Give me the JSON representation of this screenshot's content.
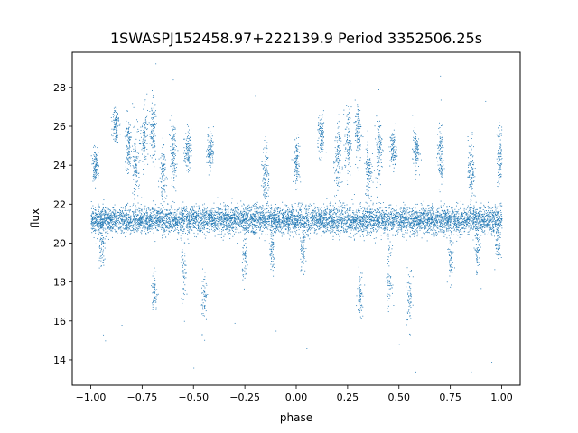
{
  "chart_data": {
    "type": "scatter",
    "title": "1SWASPJ152458.97+222139.9 Period 3352506.25s",
    "xlabel": "phase",
    "ylabel": "flux",
    "xlim": [
      -1.09,
      1.09
    ],
    "ylim": [
      12.7,
      29.8
    ],
    "xticks": [
      -1.0,
      -0.75,
      -0.5,
      -0.25,
      0.0,
      0.25,
      0.5,
      0.75,
      1.0
    ],
    "xtick_labels": [
      "−1.00",
      "−0.75",
      "−0.50",
      "−0.25",
      "0.00",
      "0.25",
      "0.50",
      "0.75",
      "1.00"
    ],
    "yticks": [
      14,
      16,
      18,
      20,
      22,
      24,
      26,
      28
    ],
    "ytick_labels": [
      "14",
      "16",
      "18",
      "20",
      "22",
      "24",
      "26",
      "28"
    ],
    "grid": false,
    "legend": "none",
    "point_color": "#1f77b4",
    "phase_range": [
      -1.0,
      1.0
    ],
    "baseline_flux": 21.2,
    "baseline_scatter": 0.35,
    "bright_clusters": [
      {
        "phase": -0.98,
        "flux": 24.0,
        "spread": 0.4
      },
      {
        "phase": -0.88,
        "flux": 26.2,
        "spread": 0.5
      },
      {
        "phase": -0.82,
        "flux": 25.0,
        "spread": 0.8
      },
      {
        "phase": -0.78,
        "flux": 24.0,
        "spread": 1.0
      },
      {
        "phase": -0.74,
        "flux": 25.5,
        "spread": 0.8
      },
      {
        "phase": -0.7,
        "flux": 25.8,
        "spread": 0.8
      },
      {
        "phase": -0.65,
        "flux": 23.5,
        "spread": 0.8
      },
      {
        "phase": -0.6,
        "flux": 24.5,
        "spread": 0.8
      },
      {
        "phase": -0.53,
        "flux": 24.8,
        "spread": 0.5
      },
      {
        "phase": -0.42,
        "flux": 24.8,
        "spread": 0.5
      },
      {
        "phase": -0.15,
        "flux": 23.5,
        "spread": 0.8
      },
      {
        "phase": 0.0,
        "flux": 24.2,
        "spread": 0.6
      },
      {
        "phase": 0.12,
        "flux": 25.5,
        "spread": 0.6
      },
      {
        "phase": 0.2,
        "flux": 24.2,
        "spread": 1.0
      },
      {
        "phase": 0.25,
        "flux": 25.2,
        "spread": 0.9
      },
      {
        "phase": 0.3,
        "flux": 25.8,
        "spread": 0.8
      },
      {
        "phase": 0.35,
        "flux": 23.8,
        "spread": 0.8
      },
      {
        "phase": 0.4,
        "flux": 24.8,
        "spread": 0.8
      },
      {
        "phase": 0.47,
        "flux": 24.8,
        "spread": 0.5
      },
      {
        "phase": 0.58,
        "flux": 24.8,
        "spread": 0.5
      },
      {
        "phase": 0.7,
        "flux": 24.5,
        "spread": 0.8
      },
      {
        "phase": 0.85,
        "flux": 23.8,
        "spread": 0.8
      },
      {
        "phase": 0.99,
        "flux": 24.5,
        "spread": 0.8
      }
    ],
    "dim_clusters": [
      {
        "phase": -0.95,
        "flux": 19.8,
        "spread": 0.5
      },
      {
        "phase": -0.69,
        "flux": 17.5,
        "spread": 0.6
      },
      {
        "phase": -0.55,
        "flux": 18.5,
        "spread": 0.8
      },
      {
        "phase": -0.45,
        "flux": 17.2,
        "spread": 0.8
      },
      {
        "phase": -0.25,
        "flux": 19.2,
        "spread": 0.6
      },
      {
        "phase": -0.12,
        "flux": 19.5,
        "spread": 0.6
      },
      {
        "phase": 0.03,
        "flux": 19.5,
        "spread": 0.6
      },
      {
        "phase": 0.31,
        "flux": 17.5,
        "spread": 0.6
      },
      {
        "phase": 0.45,
        "flux": 18.2,
        "spread": 0.8
      },
      {
        "phase": 0.55,
        "flux": 17.2,
        "spread": 0.8
      },
      {
        "phase": 0.75,
        "flux": 19.2,
        "spread": 0.6
      },
      {
        "phase": 0.88,
        "flux": 19.5,
        "spread": 0.6
      },
      {
        "phase": 0.98,
        "flux": 20.0,
        "spread": 0.5
      }
    ],
    "outliers": [
      [
        -0.94,
        15.3
      ],
      [
        -0.93,
        15.0
      ],
      [
        -0.85,
        15.8
      ],
      [
        -0.7,
        16.6
      ],
      [
        -0.5,
        13.6
      ],
      [
        -0.3,
        15.9
      ],
      [
        -0.1,
        15.5
      ],
      [
        0.05,
        14.6
      ],
      [
        0.3,
        16.6
      ],
      [
        0.5,
        14.8
      ],
      [
        0.58,
        13.4
      ],
      [
        0.85,
        13.4
      ],
      [
        0.95,
        13.9
      ],
      [
        -0.6,
        28.4
      ],
      [
        0.2,
        28.5
      ],
      [
        0.26,
        28.3
      ],
      [
        0.7,
        28.6
      ],
      [
        -0.2,
        27.6
      ],
      [
        0.4,
        27.9
      ],
      [
        0.92,
        27.3
      ]
    ]
  }
}
